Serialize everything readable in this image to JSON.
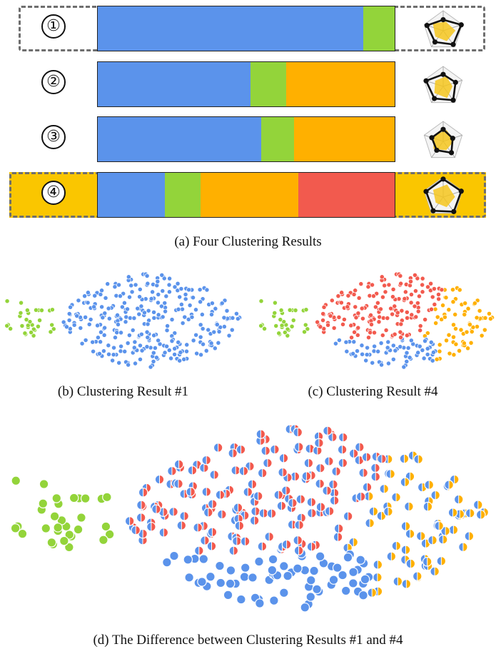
{
  "colors": {
    "blue": "#5b93eb",
    "green": "#93d43a",
    "orange": "#ffb000",
    "red": "#f25a4e",
    "highlight": "#fac600",
    "dash": "#6e6e6e"
  },
  "panel_a": {
    "caption": "(a)  Four Clustering Results",
    "rows": [
      {
        "number": "①",
        "highlighted": false,
        "dashed": true,
        "segments": [
          {
            "color": "blue",
            "share": 0.895
          },
          {
            "color": "green",
            "share": 0.105
          }
        ],
        "radar_values": [
          0.55,
          0.95,
          0.85,
          0.7,
          0.85
        ]
      },
      {
        "number": "②",
        "highlighted": false,
        "dashed": false,
        "segments": [
          {
            "color": "blue",
            "share": 0.515
          },
          {
            "color": "green",
            "share": 0.12
          },
          {
            "color": "orange",
            "share": 0.365
          }
        ],
        "radar_values": [
          0.6,
          0.65,
          0.85,
          0.75,
          0.9
        ]
      },
      {
        "number": "③",
        "highlighted": false,
        "dashed": false,
        "segments": [
          {
            "color": "blue",
            "share": 0.55
          },
          {
            "color": "green",
            "share": 0.11
          },
          {
            "color": "orange",
            "share": 0.34
          }
        ],
        "radar_values": [
          0.6,
          0.5,
          0.7,
          0.55,
          0.6
        ]
      },
      {
        "number": "④",
        "highlighted": true,
        "dashed": true,
        "segments": [
          {
            "color": "blue",
            "share": 0.225
          },
          {
            "color": "green",
            "share": 0.12
          },
          {
            "color": "orange",
            "share": 0.33
          },
          {
            "color": "red",
            "share": 0.325
          }
        ],
        "radar_values": [
          0.9,
          0.95,
          0.9,
          0.85,
          0.9
        ]
      }
    ]
  },
  "panel_b": {
    "caption": "(b)  Clustering Result #1"
  },
  "panel_c": {
    "caption": "(c)  Clustering Result #4"
  },
  "panel_d": {
    "caption": "(d)  The Difference between Clustering Results #1 and #4"
  }
}
